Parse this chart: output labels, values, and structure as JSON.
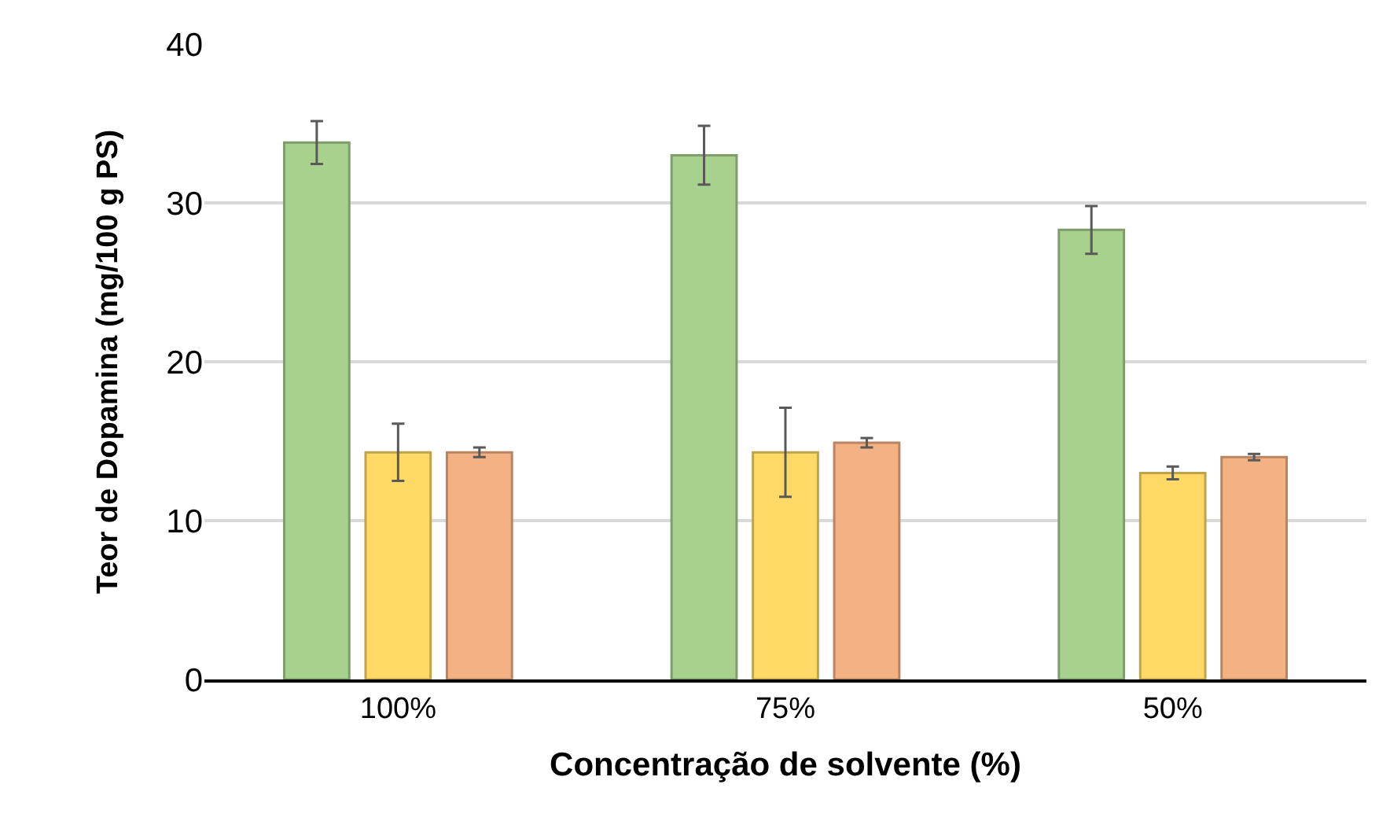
{
  "chart_data": {
    "type": "bar",
    "xlabel": "Concentração de solvente (%)",
    "ylabel": "Teor de Dopamina (mg/100 g PS)",
    "categories": [
      "100%",
      "75%",
      "50%"
    ],
    "series": [
      {
        "color": "#a9d18e",
        "values": [
          33.8,
          33.0,
          28.3
        ],
        "errors": [
          1.35,
          1.85,
          1.5
        ]
      },
      {
        "color": "#ffd966",
        "values": [
          14.3,
          14.3,
          13.0
        ],
        "errors": [
          1.8,
          2.8,
          0.4
        ]
      },
      {
        "color": "#f4b183",
        "values": [
          14.3,
          14.9,
          14.0
        ],
        "errors": [
          0.3,
          0.3,
          0.2
        ]
      }
    ],
    "ylim": [
      0,
      40
    ],
    "yticks": [
      0,
      10,
      20,
      30,
      40
    ],
    "grid": "y"
  }
}
